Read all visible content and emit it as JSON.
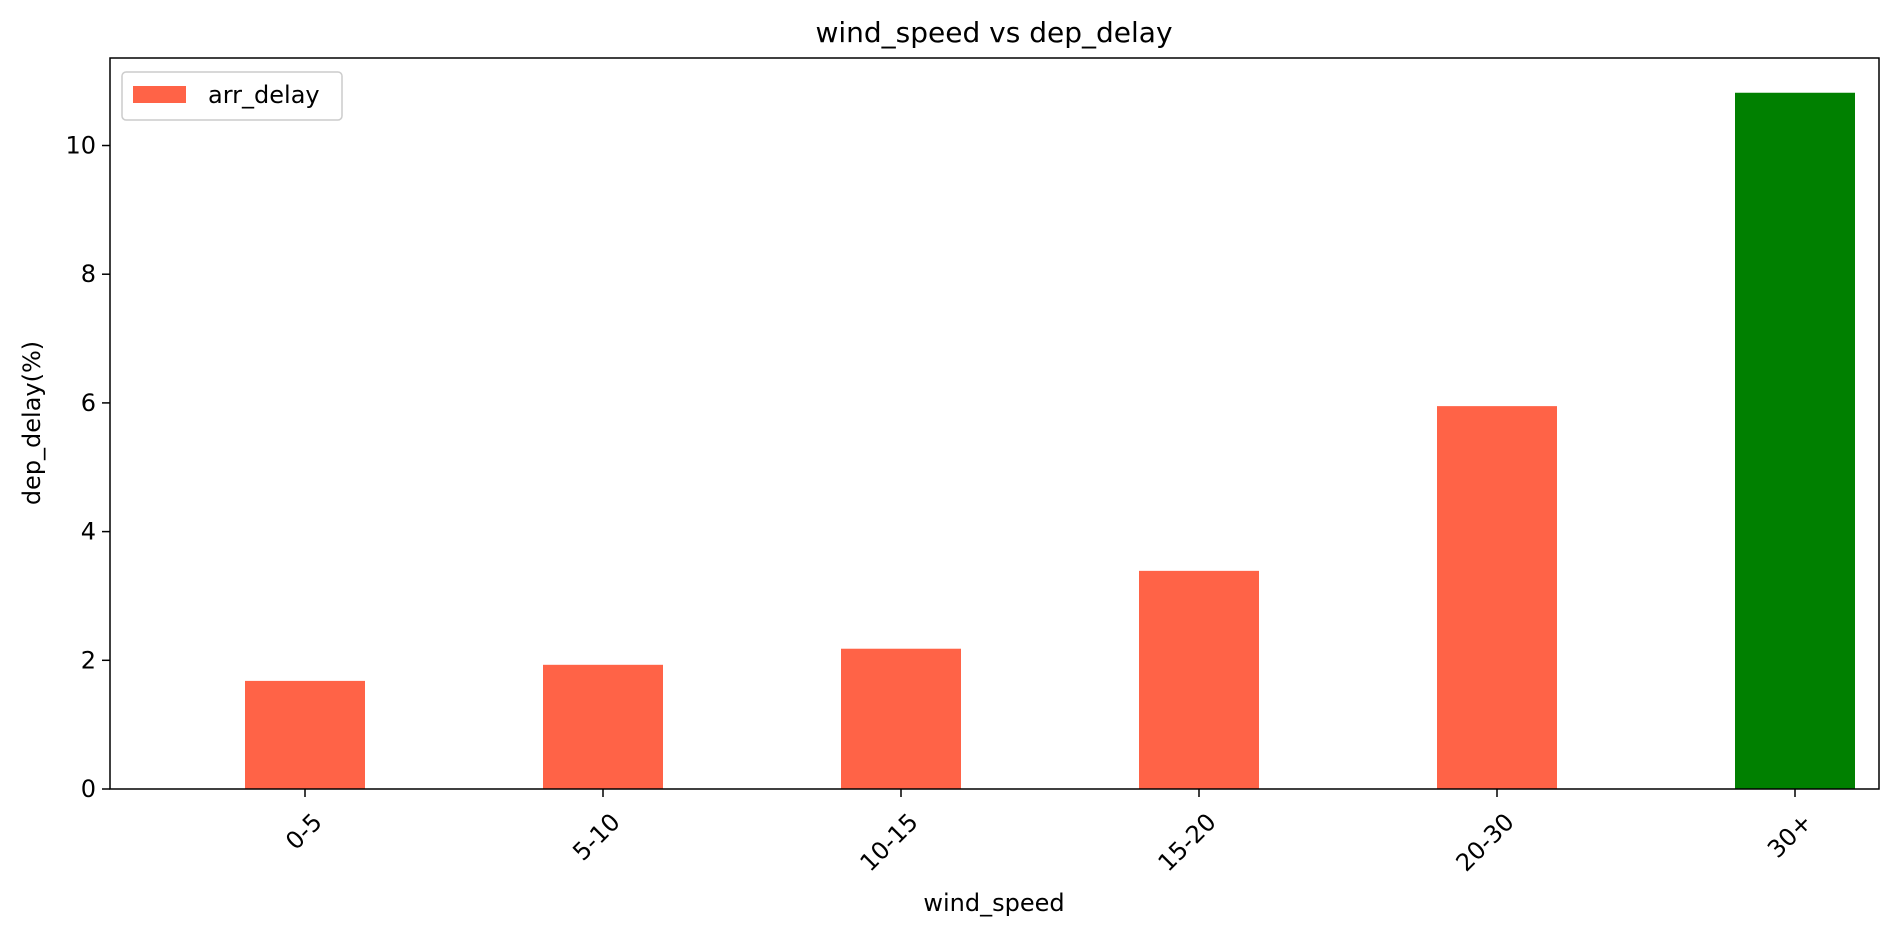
{
  "chart_data": {
    "type": "bar",
    "title": "wind_speed vs dep_delay",
    "xlabel": "wind_speed",
    "ylabel": "dep_delay(%)",
    "categories": [
      "0-5",
      "5-10",
      "10-15",
      "15-20",
      "20-30",
      "30+"
    ],
    "series": [
      {
        "name": "arr_delay",
        "values": [
          1.68,
          1.93,
          2.18,
          3.39,
          5.95,
          10.82
        ],
        "colors": [
          "#ff6347",
          "#ff6347",
          "#ff6347",
          "#ff6347",
          "#ff6347",
          "#008000"
        ]
      }
    ],
    "ylim": [
      0,
      11.36
    ],
    "yticks": [
      0,
      2,
      4,
      6,
      8,
      10
    ],
    "legend": {
      "position": "top-left",
      "entries": [
        {
          "label": "arr_delay",
          "color": "#ff6347"
        }
      ]
    },
    "grid": false
  }
}
